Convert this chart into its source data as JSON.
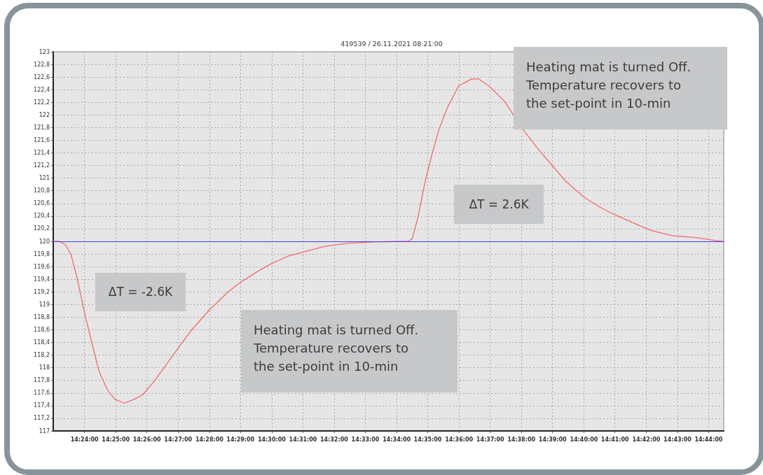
{
  "chart_data": {
    "type": "line",
    "title": "419539 / 26.11.2021 08:21:00",
    "x": [
      14.3836,
      14.3865,
      14.3897,
      14.3928,
      14.3962,
      14.4,
      14.4038,
      14.4077,
      14.4122,
      14.4162,
      14.4213,
      14.4265,
      14.431,
      14.4368,
      14.4432,
      14.4497,
      14.4573,
      14.4665,
      14.4767,
      14.4832,
      14.4922,
      14.5,
      14.509,
      14.518,
      14.5283,
      14.5412,
      14.5542,
      14.5708,
      14.573,
      14.575,
      14.578,
      14.5818,
      14.5855,
      14.5893,
      14.5937,
      14.5998,
      14.6067,
      14.6105,
      14.6167,
      14.6242,
      14.6342,
      14.6417,
      14.6492,
      14.6567,
      14.6667,
      14.6765,
      14.684,
      14.694,
      14.7028,
      14.714,
      14.7265,
      14.7377,
      14.7413
    ],
    "series": [
      {
        "color": "#f56a6a",
        "values": [
          120.0,
          120.0,
          119.95,
          119.79,
          119.4,
          118.87,
          118.41,
          117.95,
          117.65,
          117.5,
          117.44,
          117.5,
          117.57,
          117.77,
          118.03,
          118.3,
          118.6,
          118.91,
          119.2,
          119.35,
          119.52,
          119.65,
          119.77,
          119.84,
          119.92,
          119.97,
          119.99,
          120.0,
          120.0,
          120.04,
          120.37,
          120.93,
          121.37,
          121.77,
          122.11,
          122.46,
          122.57,
          122.57,
          122.44,
          122.22,
          121.77,
          121.48,
          121.22,
          120.96,
          120.7,
          120.52,
          120.41,
          120.28,
          120.17,
          120.09,
          120.06,
          120.01,
          120.0
        ]
      }
    ],
    "xlim": [
      14.3833,
      14.7414
    ],
    "xticks": [
      {
        "value": 14.4,
        "label": "14:24:00"
      },
      {
        "value": 14.4167,
        "label": "14:25:00"
      },
      {
        "value": 14.4333,
        "label": "14:26:00"
      },
      {
        "value": 14.45,
        "label": "14:27:00"
      },
      {
        "value": 14.4667,
        "label": "14:28:00"
      },
      {
        "value": 14.4833,
        "label": "14:29:00"
      },
      {
        "value": 14.5,
        "label": "14:30:00"
      },
      {
        "value": 14.5167,
        "label": "14:31:00"
      },
      {
        "value": 14.5333,
        "label": "14:32:00"
      },
      {
        "value": 14.55,
        "label": "14:33:00"
      },
      {
        "value": 14.5667,
        "label": "14:34:00"
      },
      {
        "value": 14.5833,
        "label": "14:35:00"
      },
      {
        "value": 14.6,
        "label": "14:36:00"
      },
      {
        "value": 14.6167,
        "label": "14:37:00"
      },
      {
        "value": 14.6333,
        "label": "14:38:00"
      },
      {
        "value": 14.65,
        "label": "14:39:00"
      },
      {
        "value": 14.6667,
        "label": "14:40:00"
      },
      {
        "value": 14.6833,
        "label": "14:41:00"
      },
      {
        "value": 14.7,
        "label": "14:42:00"
      },
      {
        "value": 14.7167,
        "label": "14:43:00"
      },
      {
        "value": 14.7333,
        "label": "14:44:00"
      }
    ],
    "ylim": [
      117,
      123
    ],
    "yticks": [
      117,
      {
        "value": 117.2,
        "label": "117,2"
      },
      {
        "value": 117.4,
        "label": "117,4"
      },
      {
        "value": 117.6,
        "label": "117,6"
      },
      {
        "value": 117.8,
        "label": "117,8"
      },
      118,
      {
        "value": 118.2,
        "label": "118,2"
      },
      {
        "value": 118.4,
        "label": "118,4"
      },
      {
        "value": 118.6,
        "label": "118,6"
      },
      {
        "value": 118.8,
        "label": "118,8"
      },
      119,
      {
        "value": 119.2,
        "label": "119,2"
      },
      {
        "value": 119.4,
        "label": "119,4"
      },
      {
        "value": 119.6,
        "label": "119,6"
      },
      {
        "value": 119.8,
        "label": "119,8"
      },
      120,
      {
        "value": 120.2,
        "label": "120,2"
      },
      {
        "value": 120.4,
        "label": "120,4"
      },
      {
        "value": 120.6,
        "label": "120,6"
      },
      {
        "value": 120.8,
        "label": "120,8"
      },
      121,
      {
        "value": 121.2,
        "label": "121,2"
      },
      {
        "value": 121.4,
        "label": "121,4"
      },
      {
        "value": 121.6,
        "label": "121,6"
      },
      {
        "value": 121.8,
        "label": "121,8"
      },
      122,
      {
        "value": 122.2,
        "label": "122,2"
      },
      {
        "value": 122.4,
        "label": "122,4"
      },
      {
        "value": 122.6,
        "label": "122,6"
      },
      {
        "value": 122.8,
        "label": "122,8"
      },
      123
    ],
    "ref_lines": [
      {
        "axis": "y",
        "value": 120,
        "color": "#3c3cff"
      }
    ],
    "annotations": [
      "Heating mat is turned Off. Temperature recovers to the set-point in 10-min",
      "ΔT = 2.6K",
      "ΔT = -2.6K",
      "Heating mat is turned Off. Temperature recovers to the set-point in 10-min"
    ],
    "grid": true,
    "marker": "none",
    "line_style": "solid"
  }
}
